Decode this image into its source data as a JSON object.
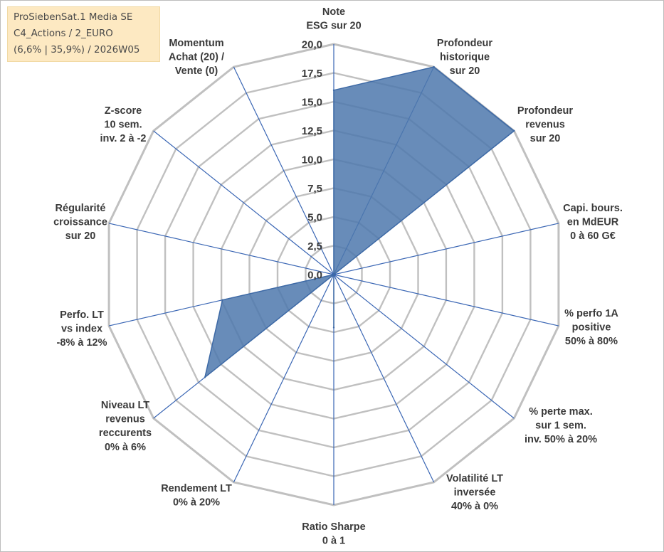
{
  "info_box": {
    "line1": "ProSiebenSat.1 Media SE",
    "line2": "C4_Actions / 2_EURO",
    "line3": "(6,6% | 35,9%) / 2026W05"
  },
  "colors": {
    "grid": "#c0c0c0",
    "spoke": "#3a66b4",
    "fill": "#4d78ad",
    "stroke": "#3e6aa6",
    "info_bg": "#fde9c2"
  },
  "chart_data": {
    "type": "radar",
    "title": "",
    "rmin": 0,
    "rmax": 20,
    "step": 2.5,
    "grid_shape": "polygon",
    "tick_labels": [
      "0,0",
      "2,5",
      "5,0",
      "7,5",
      "10,0",
      "12,5",
      "15,0",
      "17,5",
      "20,0"
    ],
    "axes": [
      {
        "lines": [
          "Note",
          "ESG sur 20"
        ],
        "value": 16.0
      },
      {
        "lines": [
          "Profondeur",
          "historique",
          "sur 20"
        ],
        "value": 20.0
      },
      {
        "lines": [
          "Profondeur",
          "revenus",
          "sur 20"
        ],
        "value": 20.0
      },
      {
        "lines": [
          "Capi. bours.",
          "en MdEUR",
          "0 à 60 G€"
        ],
        "value": 0.0
      },
      {
        "lines": [
          "% perfo 1A",
          "positive",
          "50% à 80%"
        ],
        "value": 0.0
      },
      {
        "lines": [
          "% perte max.",
          "sur 1 sem.",
          "inv. 50% à 20%"
        ],
        "value": 0.0
      },
      {
        "lines": [
          "Volatilité LT",
          "inversée",
          "40% à 0%"
        ],
        "value": 0.0
      },
      {
        "lines": [
          "Ratio Sharpe",
          "0 à 1"
        ],
        "value": 4.6
      },
      {
        "lines": [
          "Rendement LT",
          "0% à 20%"
        ],
        "value": 0.0
      },
      {
        "lines": [
          "Niveau LT",
          "revenus",
          "reccurents",
          "0% à 6%"
        ],
        "value": 14.3
      },
      {
        "lines": [
          "Perfo. LT",
          "vs index",
          "-8% à 12%"
        ],
        "value": 9.9
      },
      {
        "lines": [
          "Régularité",
          "croissance",
          "sur 20"
        ],
        "value": 0.0
      },
      {
        "lines": [
          "Z-score",
          "10 sem.",
          "inv. 2 à -2"
        ],
        "value": 0.0
      },
      {
        "lines": [
          "Momentum",
          "Achat (20) /",
          "Vente (0)"
        ],
        "value": 0.0
      }
    ]
  }
}
